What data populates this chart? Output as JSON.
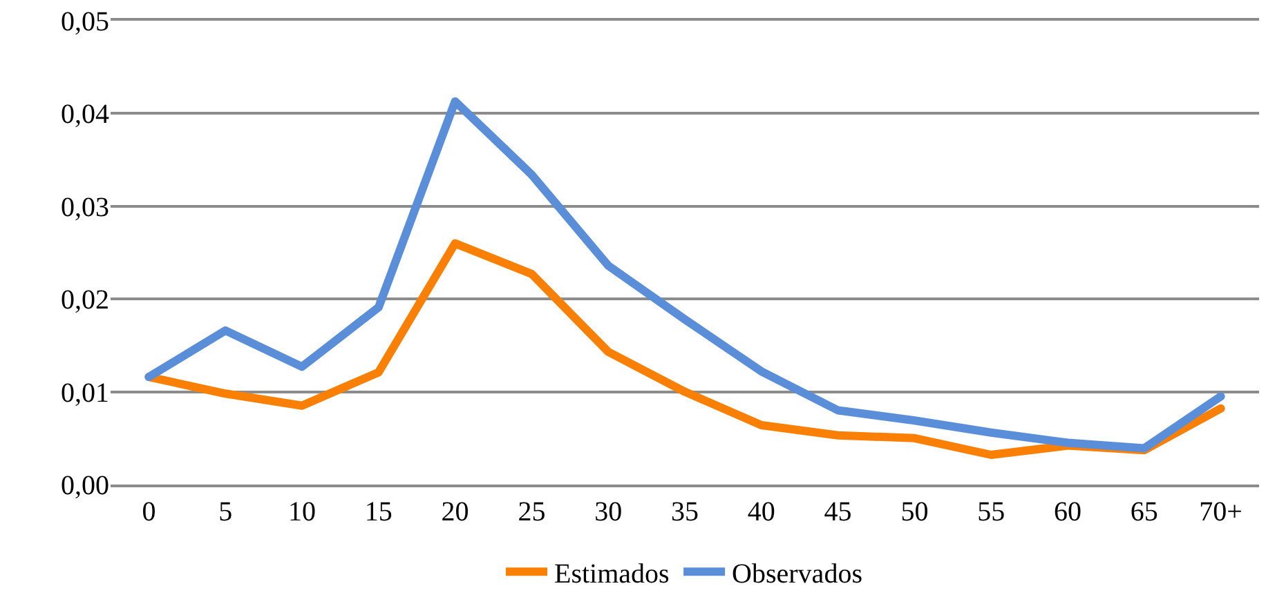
{
  "chart_data": {
    "type": "line",
    "categories": [
      "0",
      "5",
      "10",
      "15",
      "20",
      "25",
      "30",
      "35",
      "40",
      "45",
      "50",
      "55",
      "60",
      "65",
      "70+"
    ],
    "series": [
      {
        "name": "Estimados",
        "color": "#fa8005",
        "values": [
          0.0116,
          0.0098,
          0.0085,
          0.0121,
          0.026,
          0.0227,
          0.0143,
          0.01,
          0.0064,
          0.0053,
          0.005,
          0.0032,
          0.0042,
          0.0037,
          0.0082
        ]
      },
      {
        "name": "Observados",
        "color": "#5b8ed8",
        "values": [
          0.0116,
          0.0166,
          0.0127,
          0.0191,
          0.0413,
          0.0334,
          0.0236,
          0.0178,
          0.0122,
          0.008,
          0.0069,
          0.0056,
          0.0045,
          0.0039,
          0.0095
        ]
      }
    ],
    "ylim": [
      0,
      0.05
    ],
    "yticks": [
      {
        "value": 0,
        "label": "0,00"
      },
      {
        "value": 0.01,
        "label": "0,01"
      },
      {
        "value": 0.02,
        "label": "0,02"
      },
      {
        "value": 0.03,
        "label": "0,03"
      },
      {
        "value": 0.04,
        "label": "0,04"
      },
      {
        "value": 0.05,
        "label": "0,05"
      }
    ],
    "grid": "y",
    "legend": "bottom",
    "marker": "none",
    "line_style": "solid"
  }
}
